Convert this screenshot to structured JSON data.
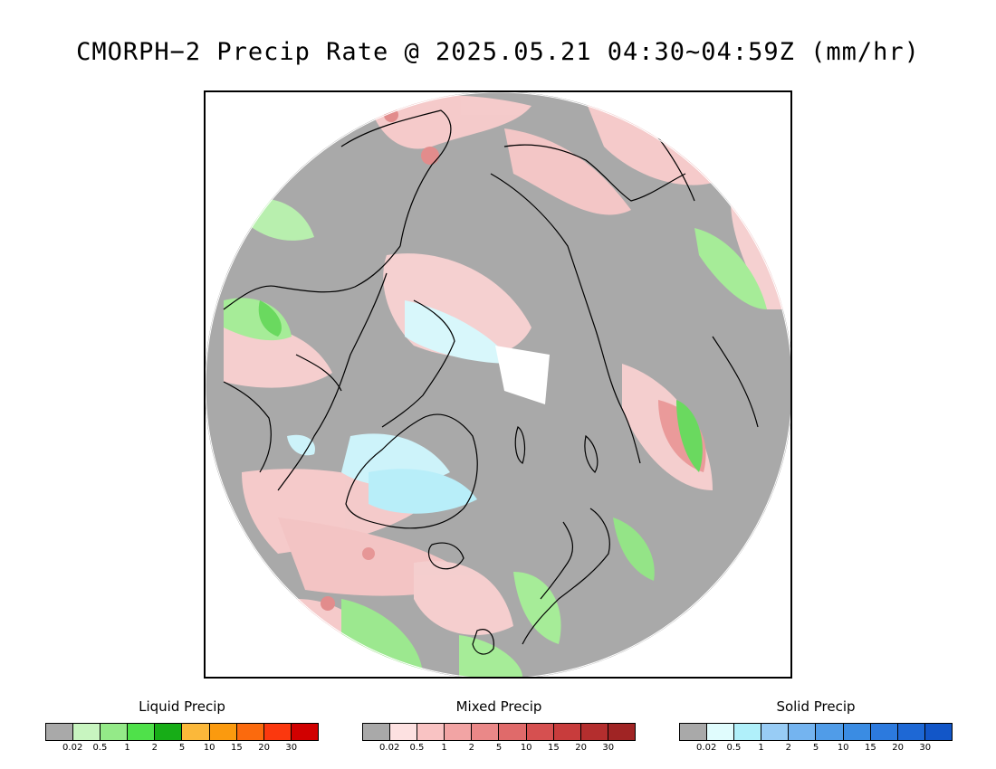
{
  "title": "CMORPH−2 Precip Rate @ 2025.05.21 04:30~04:59Z (mm/hr)",
  "map": {
    "projection": "polar-stereographic-north",
    "background_color": "#a9a9a9",
    "outside_color": "#ffffff",
    "coastline_color": "#000000"
  },
  "legends": [
    {
      "name": "liquid",
      "title": "Liquid Precip",
      "colors": [
        "#a9a9a9",
        "#c8f5c0",
        "#94ea88",
        "#4fe14a",
        "#17ad17",
        "#fbb83a",
        "#fb9a0e",
        "#fb6a0d",
        "#fb380e",
        "#d10000"
      ],
      "ticks": [
        "0.02",
        "0.5",
        "1",
        "2",
        "5",
        "10",
        "15",
        "20",
        "30"
      ]
    },
    {
      "name": "mixed",
      "title": "Mixed Precip",
      "colors": [
        "#a9a9a9",
        "#fde1e1",
        "#f9c3c3",
        "#f2a4a4",
        "#ea8888",
        "#e06a6a",
        "#d65050",
        "#c83c3c",
        "#b42e2e",
        "#a02424"
      ],
      "ticks": [
        "0.02",
        "0.5",
        "1",
        "2",
        "5",
        "10",
        "15",
        "20",
        "30"
      ]
    },
    {
      "name": "solid",
      "title": "Solid Precip",
      "colors": [
        "#a9a9a9",
        "#e0fcfd",
        "#b0f0fa",
        "#98ccf5",
        "#74b4f0",
        "#509ce8",
        "#3a8ce3",
        "#2c7ade",
        "#1e68d5",
        "#1256c8"
      ],
      "ticks": [
        "0.02",
        "0.5",
        "1",
        "2",
        "5",
        "10",
        "15",
        "20",
        "30"
      ]
    }
  ]
}
